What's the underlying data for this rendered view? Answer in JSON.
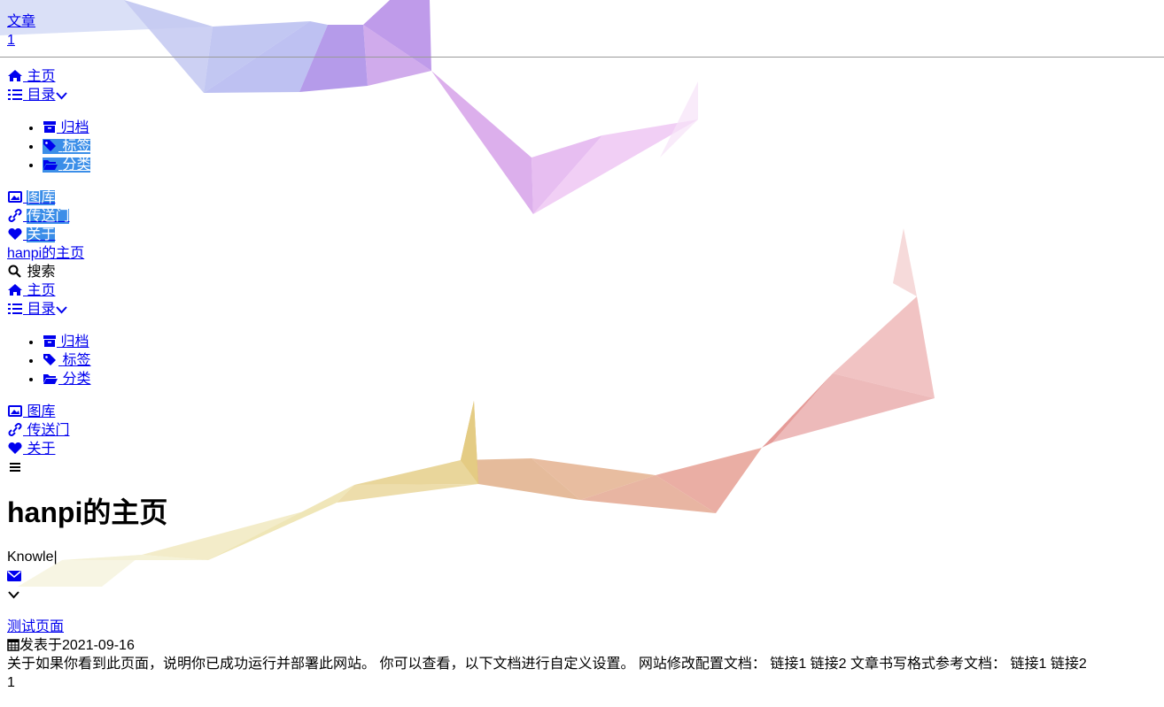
{
  "top": {
    "article_link": "文章",
    "count_link": "1"
  },
  "nav1": {
    "home": "主页",
    "catalog": "目录",
    "catalog_items": [
      "归档",
      "标签",
      "分类"
    ],
    "gallery": "图库",
    "portal": "传送门",
    "about": "关于"
  },
  "site_link": "hanpi的主页",
  "search_label": "搜索",
  "nav2": {
    "home": "主页",
    "catalog": "目录",
    "catalog_items": [
      "归档",
      "标签",
      "分类"
    ],
    "gallery": "图库",
    "portal": "传送门",
    "about": "关于"
  },
  "hero": {
    "title": "hanpi的主页",
    "typed": "Knowle|"
  },
  "post": {
    "title": "测试页面",
    "date_label": "发表于2021-09-16",
    "excerpt": "关于如果你看到此页面，说明你已成功运行并部署此网站。 你可以查看，以下文档进行自定义设置。 网站修改配置文档： 链接1 链接2 文章书写格式参考文档： 链接1 链接2",
    "count": "1"
  },
  "colors": {
    "link": "#0000ee",
    "selection": "#3b8ee8"
  }
}
